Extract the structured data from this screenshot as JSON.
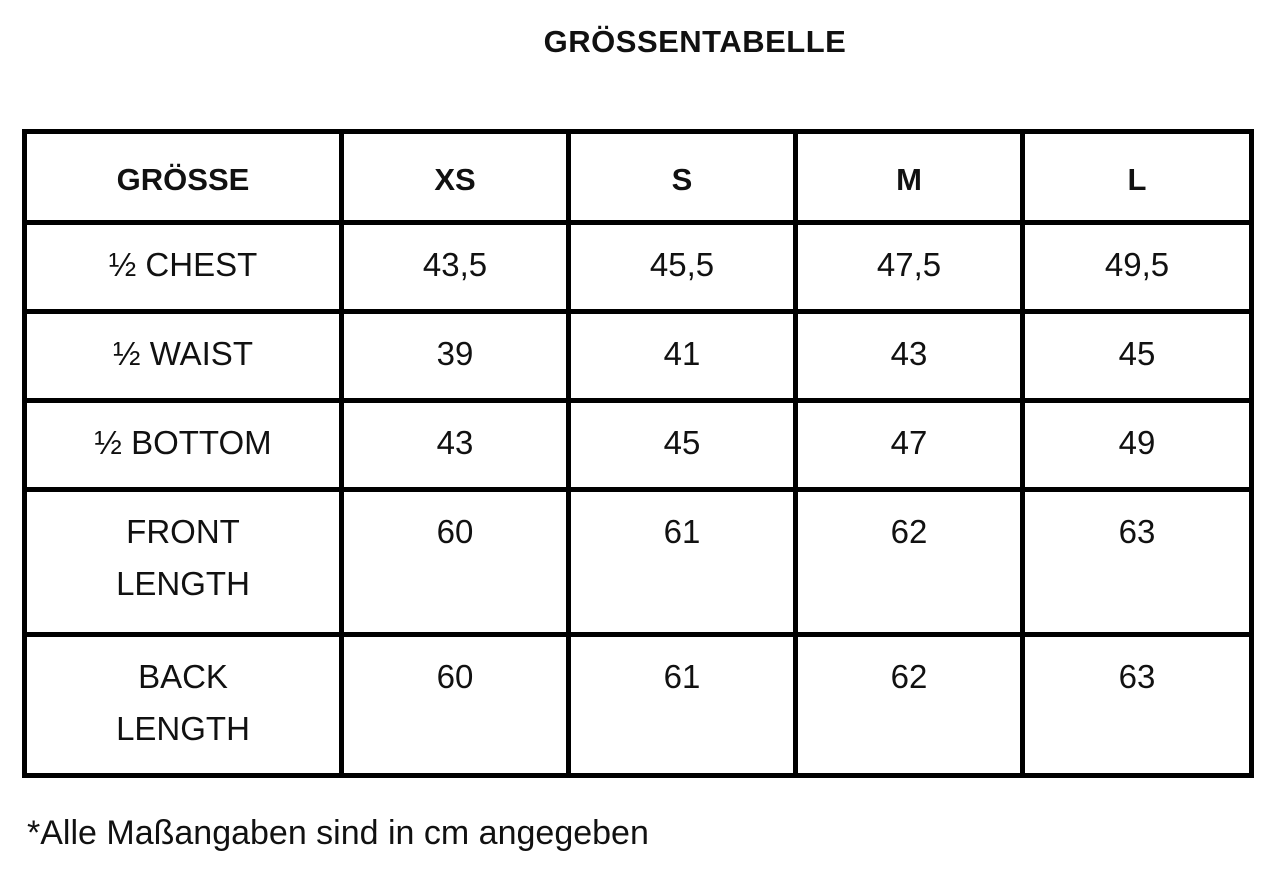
{
  "title": "GRÖSSENTABELLE",
  "table": {
    "headers": [
      "GRÖSSE",
      "XS",
      "S",
      "M",
      "L"
    ],
    "rows": [
      {
        "label": "½ CHEST",
        "values": [
          "43,5",
          "45,5",
          "47,5",
          "49,5"
        ]
      },
      {
        "label": "½ WAIST",
        "values": [
          "39",
          "41",
          "43",
          "45"
        ]
      },
      {
        "label": "½ BOTTOM",
        "values": [
          "43",
          "45",
          "47",
          "49"
        ]
      },
      {
        "label": "FRONT LENGTH",
        "values": [
          "60",
          "61",
          "62",
          "63"
        ]
      },
      {
        "label": "BACK LENGTH",
        "values": [
          "60",
          "61",
          "62",
          "63"
        ]
      }
    ]
  },
  "note": "*Alle Maßangaben sind in cm angegeben"
}
